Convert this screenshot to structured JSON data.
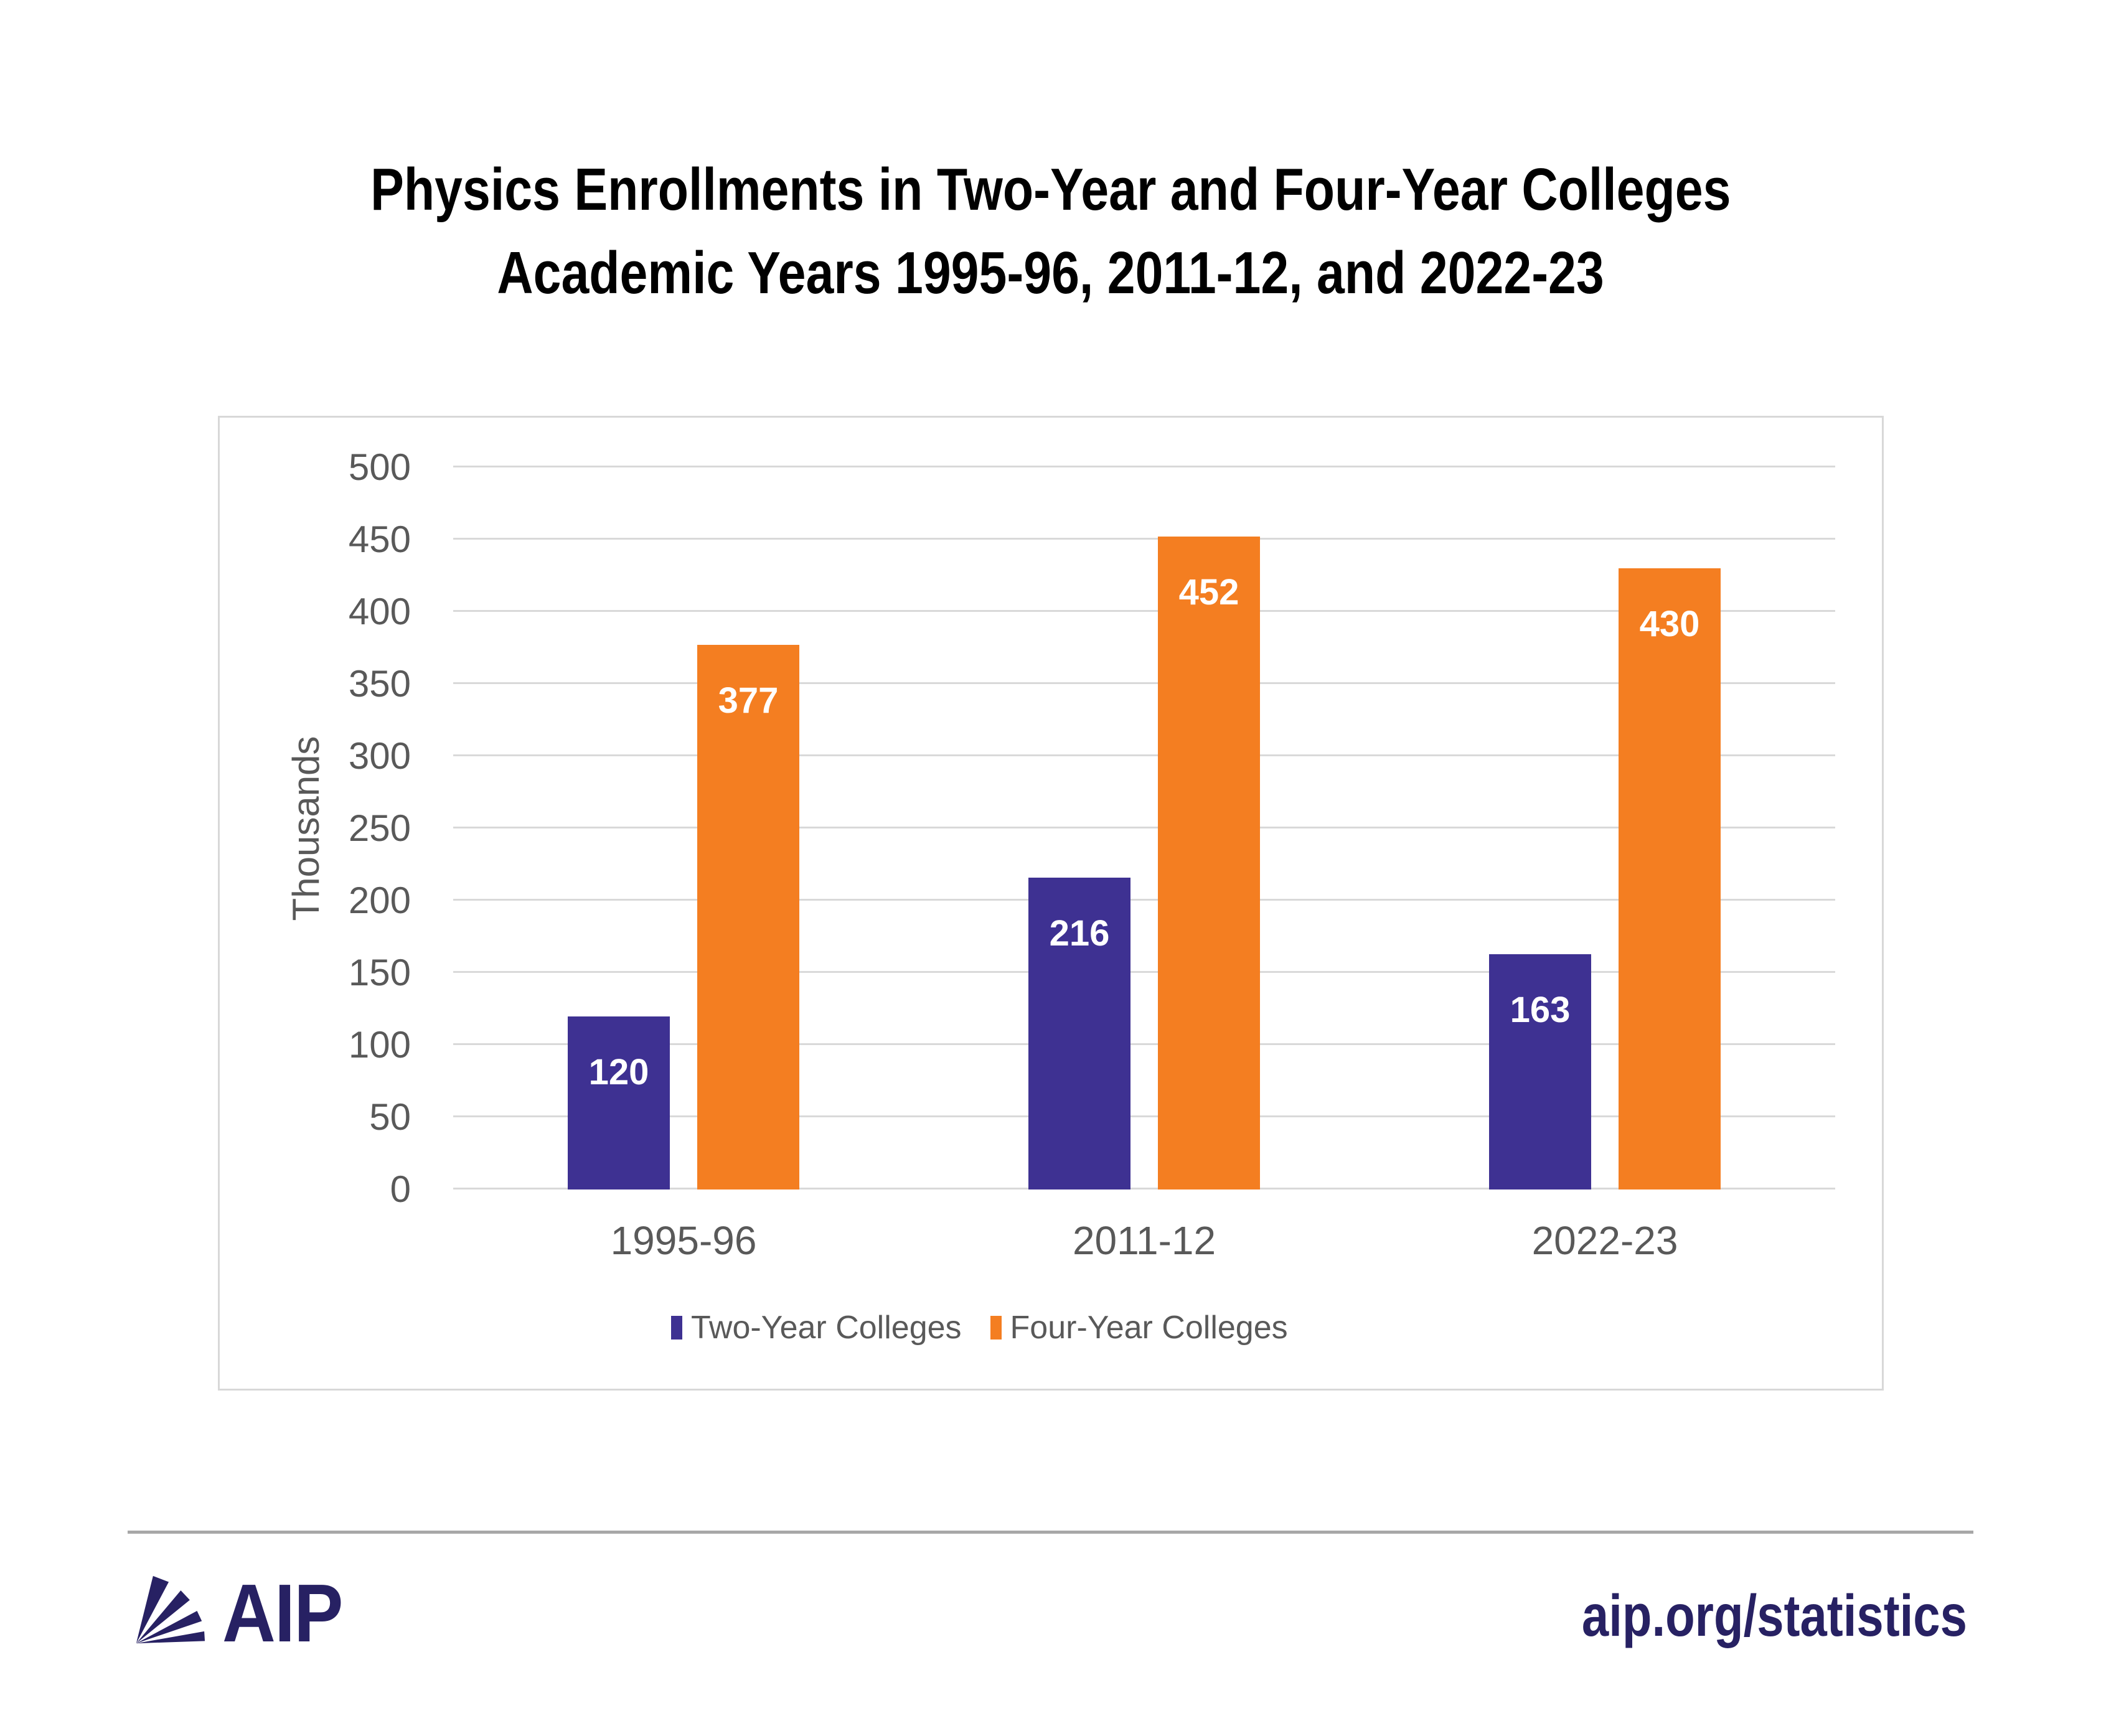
{
  "title": {
    "line1": "Physics Enrollments in Two-Year and Four-Year Colleges",
    "line2": "Academic Years 1995-96, 2011-12, and 2022-23"
  },
  "chart_data": {
    "type": "bar",
    "title": "Physics Enrollments in Two-Year and Four-Year Colleges, Academic Years 1995-96, 2011-12, and 2022-23",
    "categories": [
      "1995-96",
      "2011-12",
      "2022-23"
    ],
    "series": [
      {
        "name": "Two-Year Colleges",
        "color": "#3E3192",
        "values": [
          120,
          216,
          163
        ]
      },
      {
        "name": "Four-Year Colleges",
        "color": "#F47E21",
        "values": [
          377,
          452,
          430
        ]
      }
    ],
    "ylabel": "Thousands",
    "xlabel": "",
    "ylim": [
      0,
      500
    ],
    "yticks": [
      0,
      50,
      100,
      150,
      200,
      250,
      300,
      350,
      400,
      450,
      500
    ],
    "grid": "horizontal",
    "legend_position": "bottom",
    "value_labels": "inside-top",
    "value_label_color": "#FFFFFF"
  },
  "footer": {
    "logo": "AIP",
    "link": "aip.org/statistics"
  },
  "colors": {
    "two_year": "#3E3192",
    "four_year": "#F47E21",
    "axis_text": "#595959",
    "gridline": "#D9D9D9",
    "chart_border": "#D8D8D8",
    "divider": "#A7A7A7",
    "navy": "#272163",
    "title_text": "#000000"
  }
}
